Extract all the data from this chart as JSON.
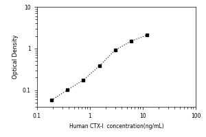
{
  "title": "",
  "xlabel": "Human CTX-I  concentration(ng/mL)",
  "ylabel": "Optical Density",
  "x_data": [
    0.188,
    0.375,
    0.75,
    1.5,
    3.0,
    6.0,
    12.0
  ],
  "y_data": [
    0.058,
    0.102,
    0.175,
    0.38,
    0.92,
    1.5,
    2.1
  ],
  "xlim": [
    0.1,
    100
  ],
  "ylim": [
    0.04,
    10
  ],
  "line_color": "black",
  "marker": "s",
  "marker_color": "black",
  "marker_size": 3,
  "linestyle": "dotted",
  "background_color": "#ffffff",
  "x_tick_labels": {
    "0.1": "0.1",
    "1": "1",
    "10": "10",
    "100": "100"
  },
  "y_tick_labels": {
    "0.1": "0.1",
    "1": "1",
    "10": "10"
  },
  "xlabel_fontsize": 5.5,
  "ylabel_fontsize": 6,
  "tick_fontsize": 5.5
}
